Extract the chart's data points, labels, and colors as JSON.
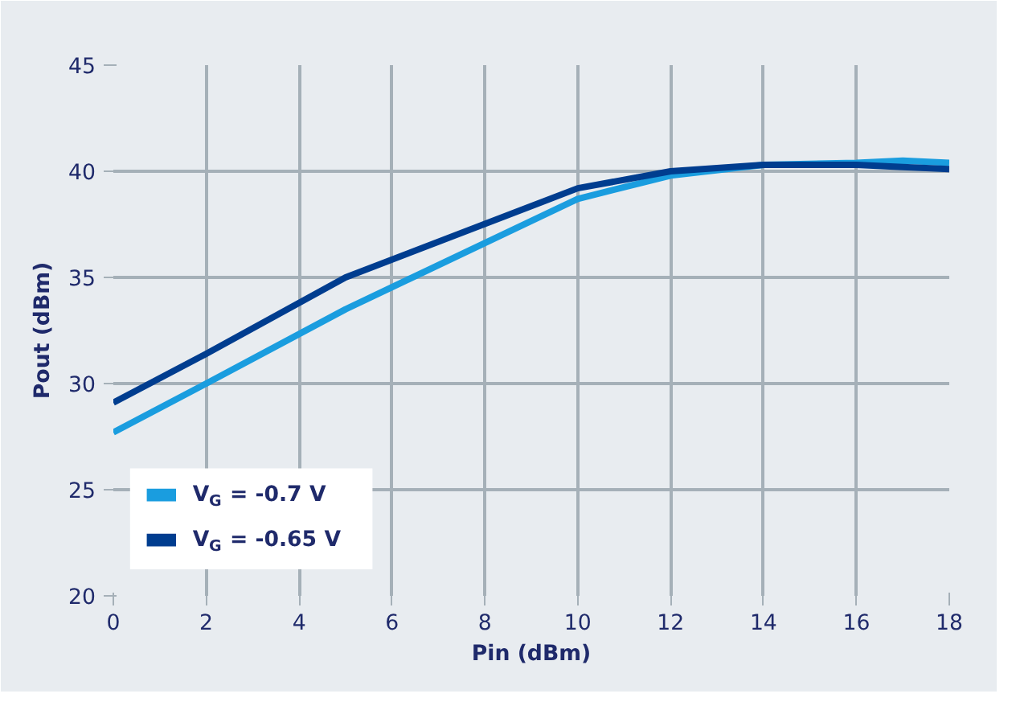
{
  "chart_data": {
    "type": "line",
    "xlabel": "Pin (dBm)",
    "ylabel": "Pout (dBm)",
    "x": [
      0,
      2,
      5,
      10,
      12,
      14,
      16,
      17,
      18
    ],
    "series": [
      {
        "name": "V$_{G}$ = -0.7 V",
        "color": "#1a9ddf",
        "values": [
          27.7,
          30,
          33.5,
          38.7,
          39.8,
          40.3,
          40.4,
          40.5,
          40.4
        ]
      },
      {
        "name": "V$_{G}$ = -0.65 V",
        "color": "#003d8f",
        "values": [
          29.1,
          31.4,
          35,
          39.2,
          40,
          40.3,
          40.3,
          40.2,
          40.1
        ]
      }
    ],
    "xlim": [
      0,
      18
    ],
    "xticks": [
      0,
      2,
      4,
      6,
      8,
      10,
      12,
      14,
      16,
      18
    ],
    "ylim": [
      20,
      45
    ],
    "yticks": [
      20,
      25,
      30,
      35,
      40,
      45
    ],
    "grid": true,
    "legend": "bottom left",
    "marker": "none",
    "line_style": "solid"
  }
}
